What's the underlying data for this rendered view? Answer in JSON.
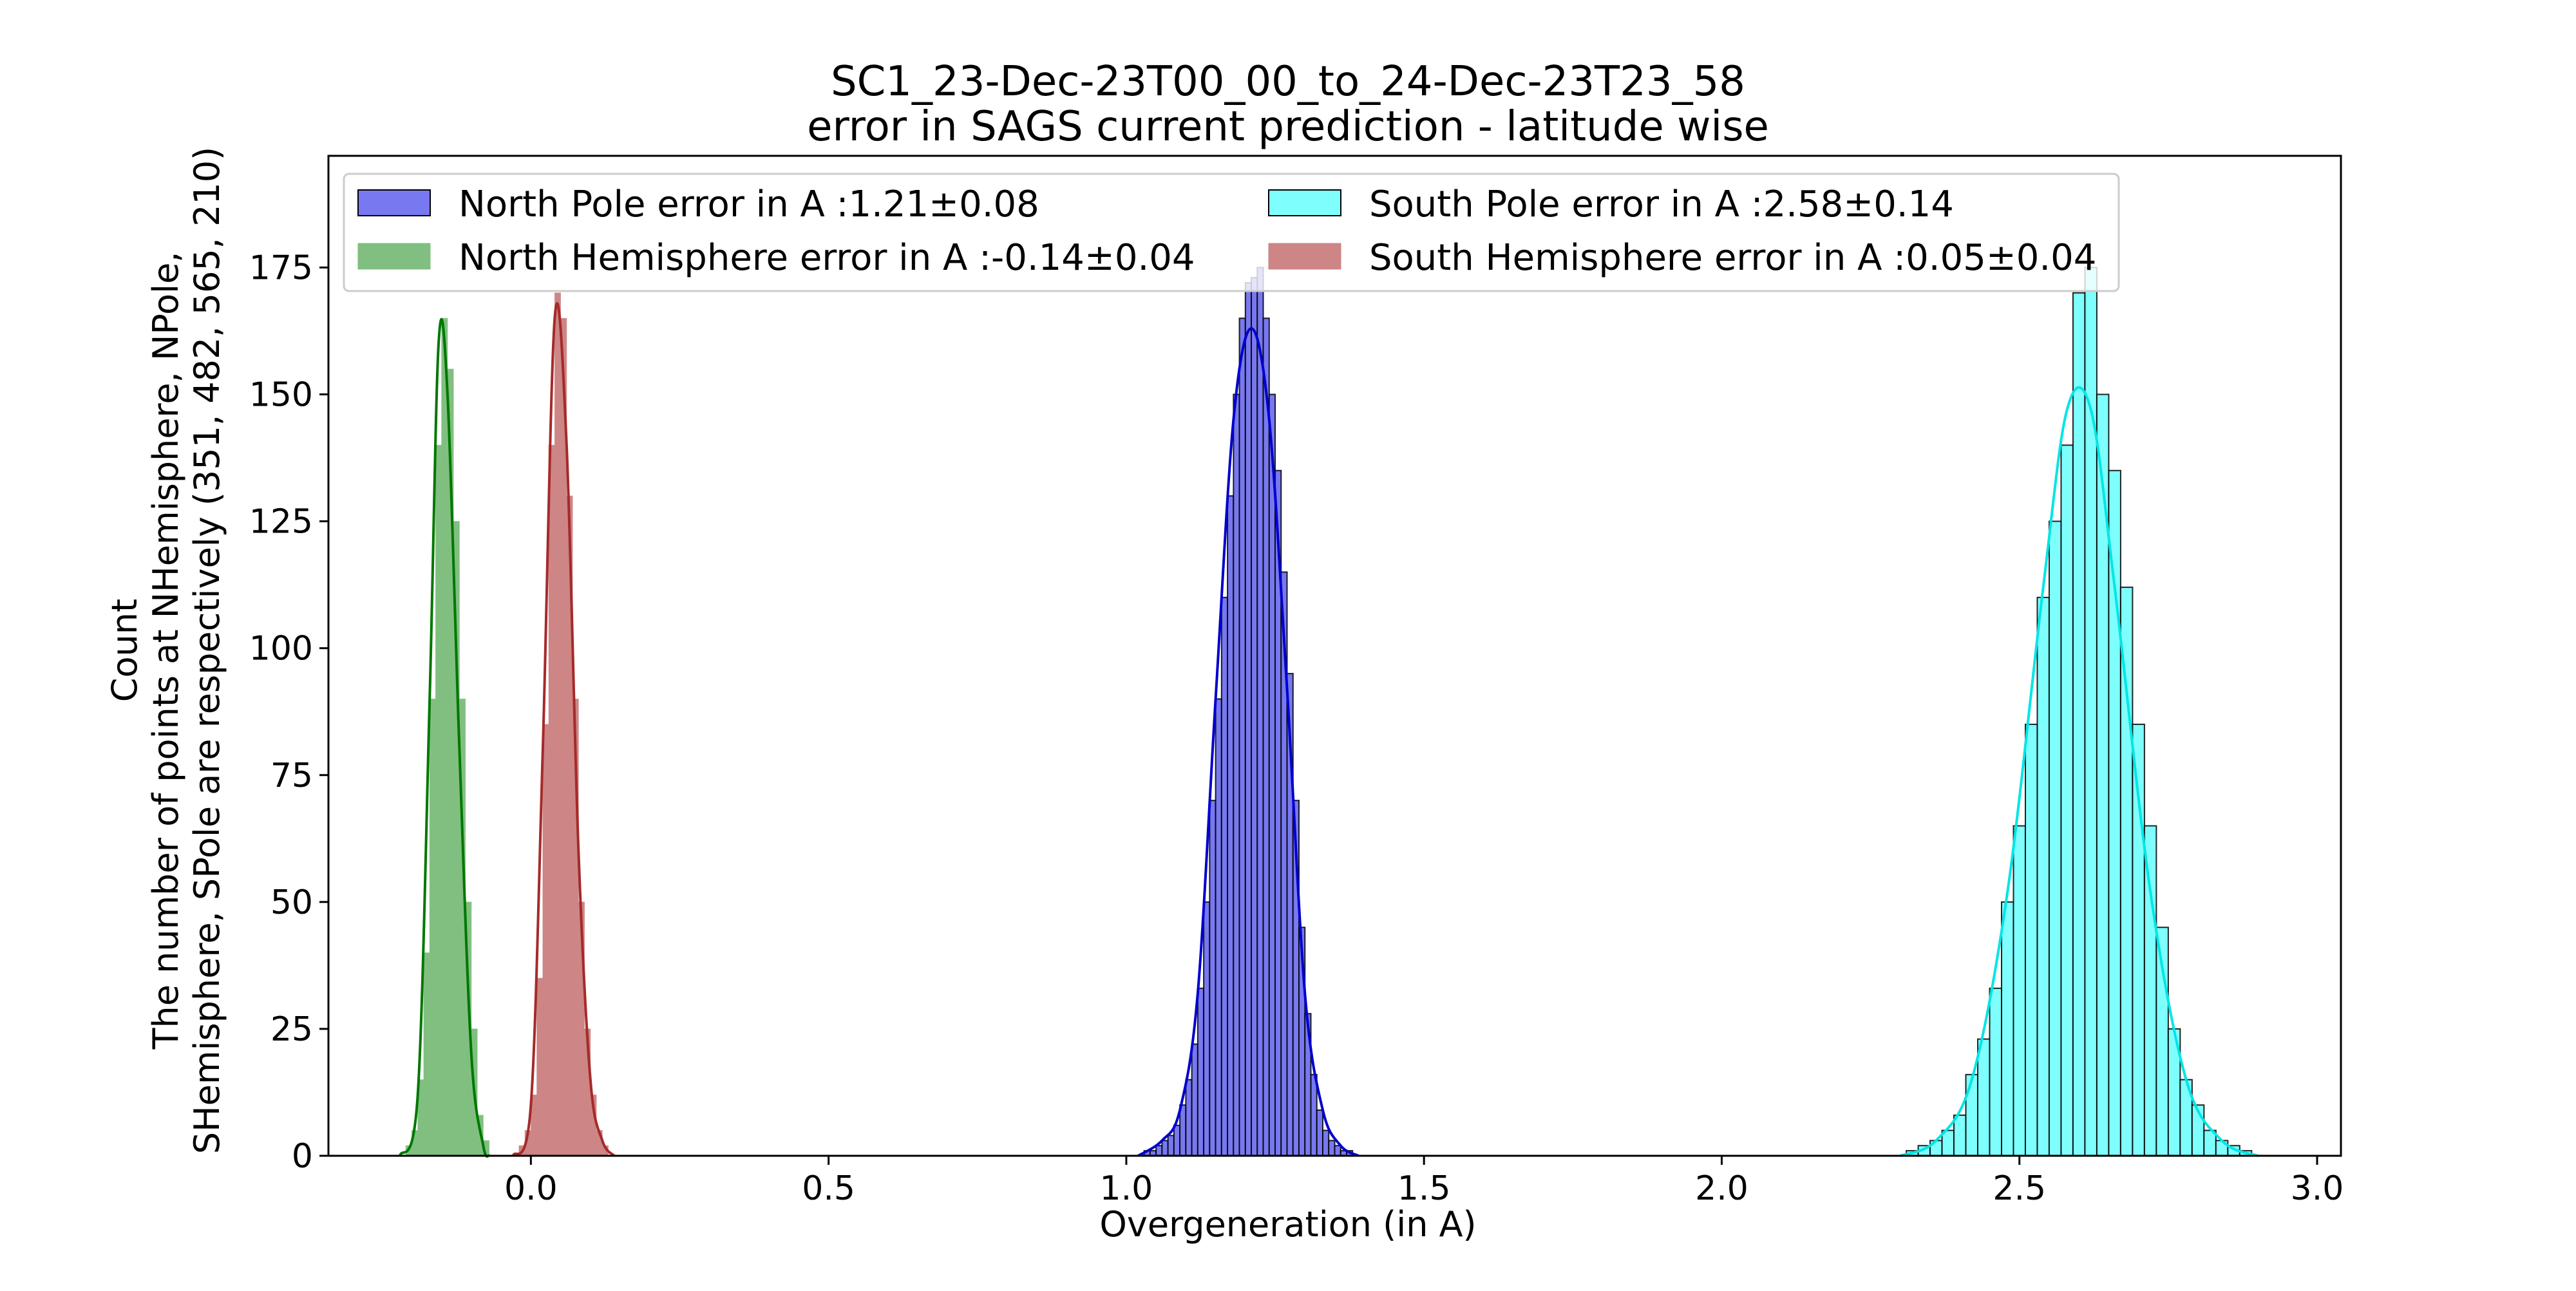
{
  "chart_data": {
    "type": "histogram",
    "title": [
      "SC1_23-Dec-23T00_00_to_24-Dec-23T23_58",
      "error in SAGS current prediction - latitude wise"
    ],
    "xlabel": "Overgeneration (in A)",
    "ylabel": [
      "Count",
      "The number of points at NHemisphere, NPole,",
      "SHemisphere, SPole are respectively  (351, 482, 565, 210)"
    ],
    "xlim": [
      -0.34,
      3.04
    ],
    "ylim": [
      0,
      197
    ],
    "x_ticks": [
      "0.0",
      "0.5",
      "1.0",
      "1.5",
      "2.0",
      "2.5",
      "3.0"
    ],
    "x_tick_values": [
      0.0,
      0.5,
      1.0,
      1.5,
      2.0,
      2.5,
      3.0
    ],
    "y_ticks": [
      "0",
      "25",
      "50",
      "75",
      "100",
      "125",
      "150",
      "175"
    ],
    "y_tick_values": [
      0,
      25,
      50,
      75,
      100,
      125,
      150,
      175
    ],
    "grid": false,
    "legend_position": "top",
    "series": [
      {
        "name": "North Pole error in A :1.21±0.08",
        "fill": "#7878f0",
        "line": "#0000cc",
        "bins": [
          [
            1.03,
            1
          ],
          [
            1.04,
            1
          ],
          [
            1.05,
            2
          ],
          [
            1.06,
            3
          ],
          [
            1.07,
            4
          ],
          [
            1.08,
            6
          ],
          [
            1.09,
            10
          ],
          [
            1.1,
            15
          ],
          [
            1.11,
            22
          ],
          [
            1.12,
            33
          ],
          [
            1.13,
            50
          ],
          [
            1.14,
            70
          ],
          [
            1.15,
            90
          ],
          [
            1.16,
            110
          ],
          [
            1.17,
            130
          ],
          [
            1.18,
            150
          ],
          [
            1.19,
            165
          ],
          [
            1.2,
            172
          ],
          [
            1.21,
            173
          ],
          [
            1.22,
            175
          ],
          [
            1.23,
            165
          ],
          [
            1.24,
            150
          ],
          [
            1.25,
            135
          ],
          [
            1.26,
            115
          ],
          [
            1.27,
            95
          ],
          [
            1.28,
            70
          ],
          [
            1.29,
            45
          ],
          [
            1.3,
            28
          ],
          [
            1.31,
            16
          ],
          [
            1.32,
            9
          ],
          [
            1.33,
            5
          ],
          [
            1.34,
            3
          ],
          [
            1.35,
            2
          ],
          [
            1.36,
            1
          ],
          [
            1.37,
            1
          ]
        ],
        "kde": [
          [
            1.02,
            0
          ],
          [
            1.06,
            3
          ],
          [
            1.09,
            9
          ],
          [
            1.12,
            32
          ],
          [
            1.15,
            90
          ],
          [
            1.18,
            145
          ],
          [
            1.21,
            163
          ],
          [
            1.24,
            145
          ],
          [
            1.27,
            92
          ],
          [
            1.3,
            32
          ],
          [
            1.33,
            9
          ],
          [
            1.36,
            2
          ],
          [
            1.39,
            0
          ]
        ]
      },
      {
        "name": "South Pole error in A :2.58±0.14",
        "fill": "#7ffefe",
        "line": "#00e5e5",
        "bins": [
          [
            2.31,
            1
          ],
          [
            2.33,
            2
          ],
          [
            2.35,
            3
          ],
          [
            2.37,
            5
          ],
          [
            2.39,
            8
          ],
          [
            2.41,
            16
          ],
          [
            2.43,
            23
          ],
          [
            2.45,
            33
          ],
          [
            2.47,
            50
          ],
          [
            2.49,
            65
          ],
          [
            2.51,
            85
          ],
          [
            2.53,
            110
          ],
          [
            2.55,
            125
          ],
          [
            2.57,
            140
          ],
          [
            2.59,
            170
          ],
          [
            2.61,
            175
          ],
          [
            2.63,
            150
          ],
          [
            2.65,
            135
          ],
          [
            2.67,
            112
          ],
          [
            2.69,
            85
          ],
          [
            2.71,
            65
          ],
          [
            2.73,
            45
          ],
          [
            2.75,
            25
          ],
          [
            2.77,
            15
          ],
          [
            2.79,
            10
          ],
          [
            2.81,
            5
          ],
          [
            2.83,
            3
          ],
          [
            2.85,
            2
          ],
          [
            2.87,
            1
          ]
        ],
        "kde": [
          [
            2.3,
            0
          ],
          [
            2.36,
            3
          ],
          [
            2.42,
            15
          ],
          [
            2.48,
            52
          ],
          [
            2.54,
            112
          ],
          [
            2.58,
            147
          ],
          [
            2.62,
            147
          ],
          [
            2.66,
            112
          ],
          [
            2.72,
            52
          ],
          [
            2.78,
            15
          ],
          [
            2.84,
            3
          ],
          [
            2.9,
            0
          ]
        ]
      },
      {
        "name": "North Hemisphere error in A :-0.14±0.04",
        "fill": "#80bf80",
        "line": "#007700",
        "bins": [
          [
            -0.21,
            2
          ],
          [
            -0.2,
            5
          ],
          [
            -0.19,
            15
          ],
          [
            -0.18,
            40
          ],
          [
            -0.17,
            90
          ],
          [
            -0.16,
            140
          ],
          [
            -0.15,
            165
          ],
          [
            -0.14,
            155
          ],
          [
            -0.13,
            125
          ],
          [
            -0.12,
            90
          ],
          [
            -0.11,
            50
          ],
          [
            -0.1,
            25
          ],
          [
            -0.09,
            8
          ],
          [
            -0.08,
            3
          ]
        ],
        "kde": [
          [
            -0.22,
            0
          ],
          [
            -0.19,
            12
          ],
          [
            -0.17,
            90
          ],
          [
            -0.155,
            160
          ],
          [
            -0.14,
            150
          ],
          [
            -0.12,
            80
          ],
          [
            -0.1,
            20
          ],
          [
            -0.08,
            2
          ],
          [
            -0.07,
            0
          ]
        ]
      },
      {
        "name": "South Hemisphere error in A :0.05±0.04",
        "fill": "#cd8585",
        "line": "#a52a2a",
        "bins": [
          [
            -0.02,
            2
          ],
          [
            -0.01,
            5
          ],
          [
            0.0,
            12
          ],
          [
            0.01,
            35
          ],
          [
            0.02,
            85
          ],
          [
            0.03,
            140
          ],
          [
            0.04,
            170
          ],
          [
            0.05,
            165
          ],
          [
            0.06,
            130
          ],
          [
            0.07,
            90
          ],
          [
            0.08,
            50
          ],
          [
            0.09,
            25
          ],
          [
            0.1,
            12
          ],
          [
            0.11,
            5
          ],
          [
            0.12,
            2
          ]
        ],
        "kde": [
          [
            -0.03,
            0
          ],
          [
            0.0,
            10
          ],
          [
            0.02,
            80
          ],
          [
            0.04,
            165
          ],
          [
            0.06,
            140
          ],
          [
            0.08,
            60
          ],
          [
            0.1,
            15
          ],
          [
            0.12,
            3
          ],
          [
            0.14,
            0
          ]
        ]
      }
    ]
  }
}
